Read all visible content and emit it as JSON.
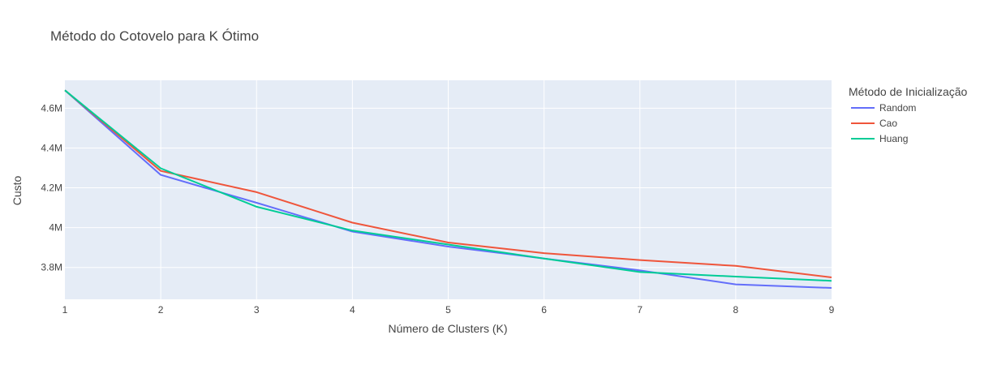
{
  "chart_data": {
    "type": "line",
    "title": "Método do Cotovelo para K Ótimo",
    "xlabel": "Número de Clusters (K)",
    "ylabel": "Custo",
    "x": [
      1,
      2,
      3,
      4,
      5,
      6,
      7,
      8,
      9
    ],
    "xlim": [
      1,
      9
    ],
    "ylim": [
      3640000,
      4740000
    ],
    "x_ticks": [
      1,
      2,
      3,
      4,
      5,
      6,
      7,
      8,
      9
    ],
    "y_ticks": [
      {
        "value": 3800000,
        "label": "3.8M"
      },
      {
        "value": 4000000,
        "label": "4M"
      },
      {
        "value": 4200000,
        "label": "4.2M"
      },
      {
        "value": 4400000,
        "label": "4.4M"
      },
      {
        "value": 4600000,
        "label": "4.6M"
      }
    ],
    "grid": true,
    "legend": {
      "title": "Método de Inicialização",
      "placement": "right"
    },
    "series": [
      {
        "name": "Random",
        "color": "#636efa",
        "values": [
          4690000,
          4265000,
          4125000,
          3980000,
          3905000,
          3845000,
          3785000,
          3715000,
          3697000
        ]
      },
      {
        "name": "Cao",
        "color": "#ef553b",
        "values": [
          4690000,
          4285000,
          4178000,
          4025000,
          3925000,
          3872000,
          3837000,
          3808000,
          3750000
        ]
      },
      {
        "name": "Huang",
        "color": "#00cc96",
        "values": [
          4690000,
          4298000,
          4105000,
          3985000,
          3915000,
          3845000,
          3777000,
          3754000,
          3733000
        ]
      }
    ],
    "colors": {
      "plot_bg": "#e5ecf6",
      "grid": "#ffffff",
      "text": "#444444"
    }
  }
}
